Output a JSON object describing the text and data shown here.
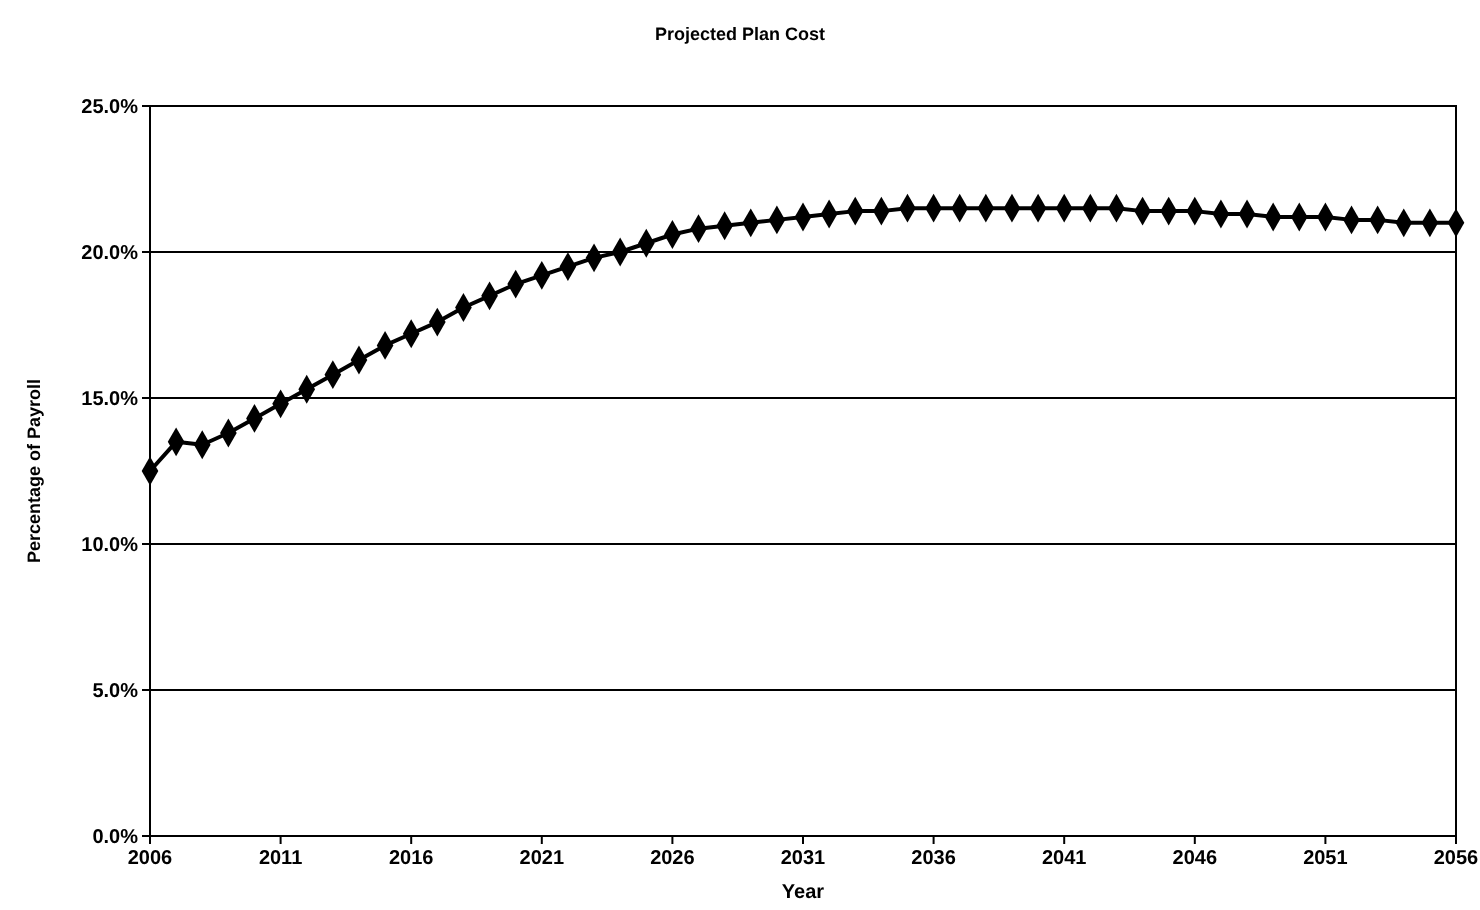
{
  "chart_data": {
    "type": "line",
    "title": "Projected Plan Cost",
    "xlabel": "Year",
    "ylabel": "Percentage of Payroll",
    "x": [
      2006,
      2007,
      2008,
      2009,
      2010,
      2011,
      2012,
      2013,
      2014,
      2015,
      2016,
      2017,
      2018,
      2019,
      2020,
      2021,
      2022,
      2023,
      2024,
      2025,
      2026,
      2027,
      2028,
      2029,
      2030,
      2031,
      2032,
      2033,
      2034,
      2035,
      2036,
      2037,
      2038,
      2039,
      2040,
      2041,
      2042,
      2043,
      2044,
      2045,
      2046,
      2047,
      2048,
      2049,
      2050,
      2051,
      2052,
      2053,
      2054,
      2055,
      2056
    ],
    "series": [
      {
        "color": "#000000",
        "values": [
          12.5,
          13.5,
          13.4,
          13.8,
          14.3,
          14.8,
          15.3,
          15.8,
          16.3,
          16.8,
          17.2,
          17.6,
          18.1,
          18.5,
          18.9,
          19.2,
          19.5,
          19.8,
          20.0,
          20.3,
          20.6,
          20.8,
          20.9,
          21.0,
          21.1,
          21.2,
          21.3,
          21.4,
          21.4,
          21.5,
          21.5,
          21.5,
          21.5,
          21.5,
          21.5,
          21.5,
          21.5,
          21.5,
          21.4,
          21.4,
          21.4,
          21.3,
          21.3,
          21.2,
          21.2,
          21.2,
          21.1,
          21.1,
          21.0,
          21.0,
          21.0
        ]
      }
    ],
    "xlim": [
      2006,
      2056
    ],
    "xticks": [
      2006,
      2011,
      2016,
      2021,
      2026,
      2031,
      2036,
      2041,
      2046,
      2051,
      2056
    ],
    "ylim": [
      0,
      25
    ],
    "yticks": [
      {
        "value": 0,
        "label": "0.0%"
      },
      {
        "value": 5,
        "label": "5.0%"
      },
      {
        "value": 10,
        "label": "10.0%"
      },
      {
        "value": 15,
        "label": "15.0%"
      },
      {
        "value": 20,
        "label": "20.0%"
      },
      {
        "value": 25,
        "label": "25.0%"
      }
    ],
    "grid": "y",
    "marker": "diamond",
    "line_style": "solid"
  }
}
